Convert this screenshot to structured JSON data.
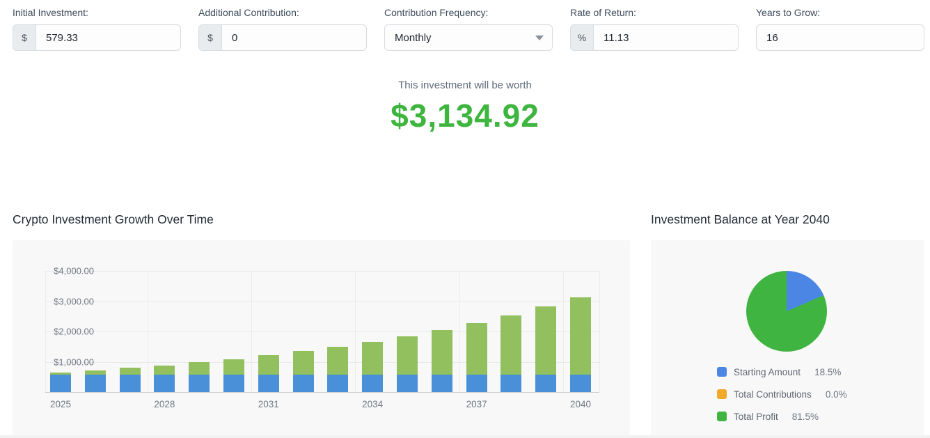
{
  "inputs": {
    "initial_investment": {
      "label": "Initial Investment:",
      "prefix": "$",
      "value": "579.33"
    },
    "additional_contribution": {
      "label": "Additional Contribution:",
      "prefix": "$",
      "value": "0"
    },
    "contribution_frequency": {
      "label": "Contribution Frequency:",
      "value": "Monthly"
    },
    "rate_of_return": {
      "label": "Rate of Return:",
      "prefix": "%",
      "value": "11.13"
    },
    "years_to_grow": {
      "label": "Years to Grow:",
      "value": "16"
    }
  },
  "result": {
    "caption": "This investment will be worth",
    "amount": "$3,134.92",
    "amount_color": "#3eb53e"
  },
  "sections": {
    "bar_title": "Crypto Investment Growth Over Time",
    "pie_title": "Investment Balance at Year 2040"
  },
  "chart_data": [
    {
      "type": "bar",
      "title": "Crypto Investment Growth Over Time",
      "stacked": true,
      "x": [
        2025,
        2026,
        2027,
        2028,
        2029,
        2030,
        2031,
        2032,
        2033,
        2034,
        2035,
        2036,
        2037,
        2038,
        2039,
        2040
      ],
      "x_tick_labels": [
        "2025",
        "2028",
        "2031",
        "2034",
        "2037",
        "2040"
      ],
      "x_tick_every": 3,
      "series": [
        {
          "name": "Starting Amount",
          "color": "#4a90d8",
          "values": [
            579.33,
            579.33,
            579.33,
            579.33,
            579.33,
            579.33,
            579.33,
            579.33,
            579.33,
            579.33,
            579.33,
            579.33,
            579.33,
            579.33,
            579.33,
            579.33
          ]
        },
        {
          "name": "Total Profit",
          "color": "#93c05e",
          "values": [
            64.48,
            136.13,
            215.76,
            304.25,
            402.6,
            511.91,
            633.35,
            768.33,
            918.32,
            1085.01,
            1270.29,
            1476.21,
            1704.99,
            1959.2,
            2241.7,
            2555.59
          ]
        }
      ],
      "y_ticks": [
        {
          "label": "$1,000.00",
          "value": 1000
        },
        {
          "label": "$2,000.00",
          "value": 2000
        },
        {
          "label": "$3,000.00",
          "value": 3000
        },
        {
          "label": "$4,000.00",
          "value": 4000
        }
      ],
      "ylim": [
        0,
        4300
      ],
      "grid": true,
      "legend_position": "none"
    },
    {
      "type": "pie",
      "title": "Investment Balance at Year 2040",
      "slices": [
        {
          "label": "Starting Amount",
          "pct": 18.5,
          "pct_label": "18.5%",
          "color": "#4c86e4"
        },
        {
          "label": "Total Contributions",
          "pct": 0.0,
          "pct_label": "0.0%",
          "color": "#f0a928"
        },
        {
          "label": "Total Profit",
          "pct": 81.5,
          "pct_label": "81.5%",
          "color": "#3fb440"
        }
      ],
      "legend_position": "bottom-left"
    }
  ]
}
